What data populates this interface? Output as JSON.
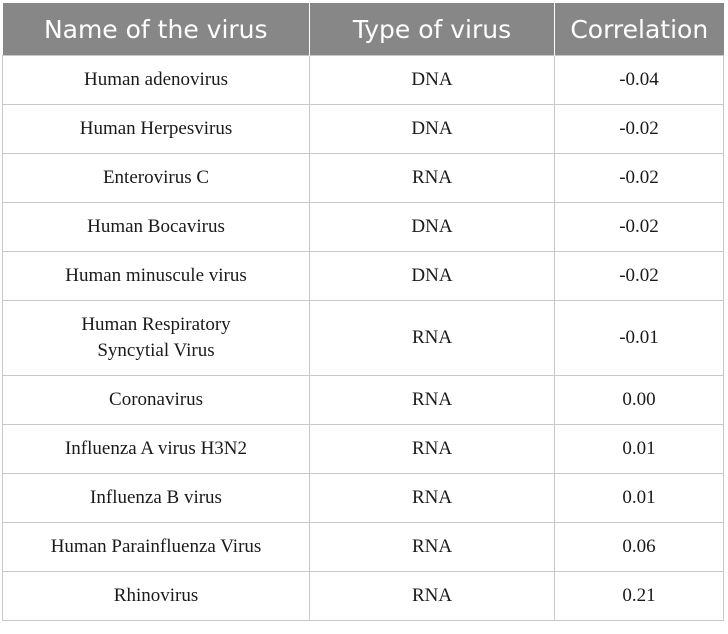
{
  "table": {
    "headers": [
      "Name of the virus",
      "Type of virus",
      "Correlation"
    ],
    "rows": [
      {
        "name": "Human adenovirus",
        "type": "DNA",
        "correlation": "-0.04"
      },
      {
        "name": "Human Herpesvirus",
        "type": "DNA",
        "correlation": "-0.02"
      },
      {
        "name": "Enterovirus C",
        "type": "RNA",
        "correlation": "-0.02"
      },
      {
        "name": "Human Bocavirus",
        "type": "DNA",
        "correlation": "-0.02"
      },
      {
        "name": "Human minuscule virus",
        "type": "DNA",
        "correlation": "-0.02"
      },
      {
        "name": "Human Respiratory Syncytial Virus",
        "type": "RNA",
        "correlation": "-0.01"
      },
      {
        "name": "Coronavirus",
        "type": "RNA",
        "correlation": "0.00"
      },
      {
        "name": "Influenza A virus H3N2",
        "type": "RNA",
        "correlation": "0.01"
      },
      {
        "name": "Influenza B virus",
        "type": "RNA",
        "correlation": "0.01"
      },
      {
        "name": "Human Parainfluenza Virus",
        "type": "RNA",
        "correlation": "0.06"
      },
      {
        "name": "Rhinovirus",
        "type": "RNA",
        "correlation": "0.21"
      }
    ]
  },
  "colors": {
    "header_bg": "#878787",
    "header_text": "#ffffff",
    "border": "#c8c8c8"
  }
}
